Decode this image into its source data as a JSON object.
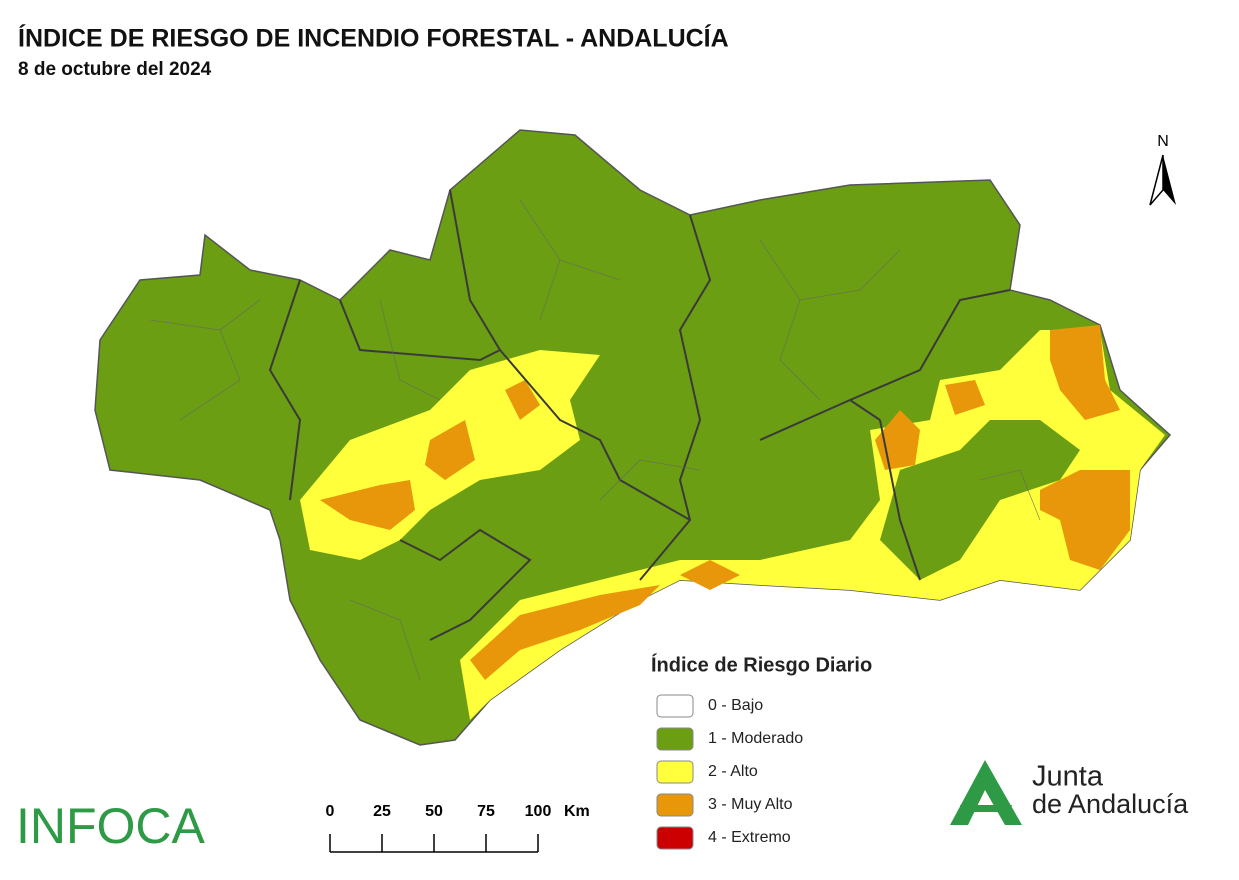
{
  "header": {
    "title": "ÍNDICE DE RIESGO DE INCENDIO FORESTAL - ANDALUCÍA",
    "subtitle": "8 de octubre del 2024"
  },
  "north": "N",
  "legend": {
    "title": "Índice de Riesgo Diario",
    "items": [
      {
        "label": "0 - Bajo",
        "color": "#ffffff"
      },
      {
        "label": "1 - Moderado",
        "color": "#6b9e12"
      },
      {
        "label": "2 - Alto",
        "color": "#ffff3c"
      },
      {
        "label": "3 - Muy Alto",
        "color": "#e8960a"
      },
      {
        "label": "4 - Extremo",
        "color": "#cc0000"
      }
    ]
  },
  "scale": {
    "ticks": [
      0,
      25,
      50,
      75,
      100
    ],
    "unit": "Km"
  },
  "logos": {
    "left": "INFOCA",
    "right_line1": "Junta",
    "right_line2": "de Andalucía"
  }
}
